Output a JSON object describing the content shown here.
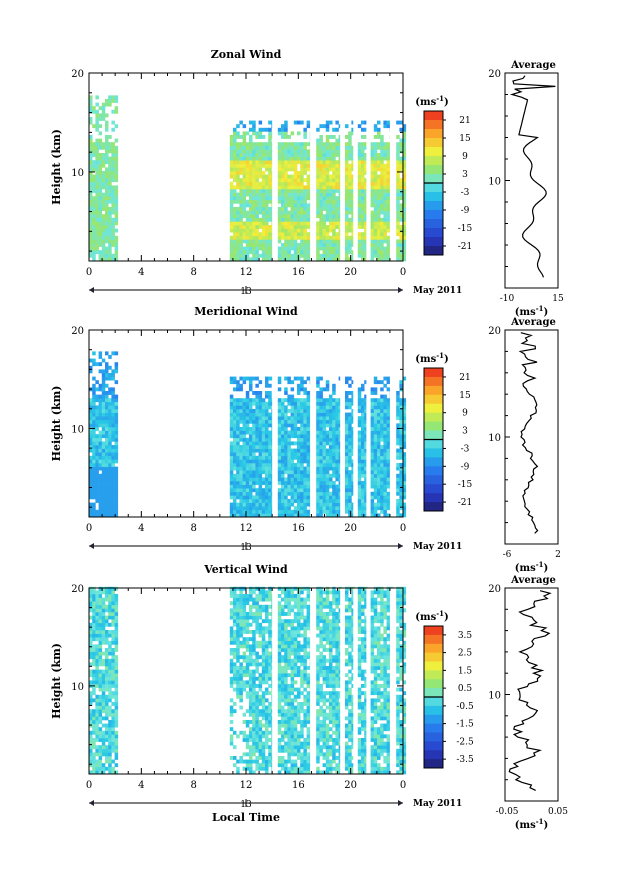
{
  "chart_data": [
    {
      "type": "heatmap",
      "title": "Zonal Wind",
      "ylabel": "Height (km)",
      "ylim": [
        1,
        20
      ],
      "yticks": [
        "10",
        "20"
      ],
      "xticks": [
        "0",
        "4",
        "8",
        "12",
        "16",
        "20",
        "0"
      ],
      "xlim": [
        0,
        24
      ],
      "date_label": "13",
      "month_label": "May 2011",
      "colorbar": {
        "unit": "(ms",
        "unit_sup": "-1",
        "unit_close": ")",
        "ticks": [
          "21",
          "15",
          "9",
          "3",
          "-3",
          "-9",
          "-15",
          "-21"
        ],
        "range": [
          -24,
          24
        ]
      },
      "data_columns_hours": [
        [
          0,
          2
        ],
        [
          11,
          24
        ]
      ],
      "average": {
        "title": "Average",
        "xticks": [
          "-10",
          "15"
        ],
        "xlim": [
          -10,
          15
        ],
        "yticks": [
          "10",
          "20"
        ],
        "xlabel": "(ms",
        "xlabel_sup": "-1",
        "xlabel_close": ")"
      }
    },
    {
      "type": "heatmap",
      "title": "Meridional Wind",
      "ylabel": "Height (km)",
      "ylim": [
        1,
        20
      ],
      "yticks": [
        "10",
        "20"
      ],
      "xticks": [
        "0",
        "4",
        "8",
        "12",
        "16",
        "20",
        "0"
      ],
      "xlim": [
        0,
        24
      ],
      "date_label": "13",
      "month_label": "May 2011",
      "colorbar": {
        "unit": "(ms",
        "unit_sup": "-1",
        "unit_close": ")",
        "ticks": [
          "21",
          "15",
          "9",
          "3",
          "-3",
          "-9",
          "-15",
          "-21"
        ],
        "range": [
          -24,
          24
        ]
      },
      "data_columns_hours": [
        [
          0,
          2
        ],
        [
          11,
          24
        ]
      ],
      "average": {
        "title": "Average",
        "xticks": [
          "-6",
          "2"
        ],
        "xlim": [
          -6,
          2
        ],
        "yticks": [
          "10",
          "20"
        ],
        "xlabel": "(ms",
        "xlabel_sup": "-1",
        "xlabel_close": ")"
      }
    },
    {
      "type": "heatmap",
      "title": "Vertical Wind",
      "ylabel": "Height (km)",
      "ylim": [
        1,
        20
      ],
      "yticks": [
        "10",
        "20"
      ],
      "xticks": [
        "0",
        "4",
        "8",
        "12",
        "16",
        "20",
        "0"
      ],
      "xlim": [
        0,
        24
      ],
      "date_label": "13",
      "month_label": "May 2011",
      "xlabel": "Local Time",
      "colorbar": {
        "unit": "(ms",
        "unit_sup": "-1",
        "unit_close": ")",
        "ticks": [
          "3.5",
          "2.5",
          "1.5",
          "0.5",
          "-0.5",
          "-1.5",
          "-2.5",
          "-3.5"
        ],
        "range": [
          -4,
          4
        ]
      },
      "data_columns_hours": [
        [
          0,
          2
        ],
        [
          11,
          24
        ]
      ],
      "average": {
        "title": "Average",
        "xticks": [
          "-0.05",
          "0.05"
        ],
        "xlim": [
          -0.05,
          0.05
        ],
        "yticks": [
          "10",
          "20"
        ],
        "xlabel": "(ms",
        "xlabel_sup": "-1",
        "xlabel_close": ")"
      }
    }
  ]
}
